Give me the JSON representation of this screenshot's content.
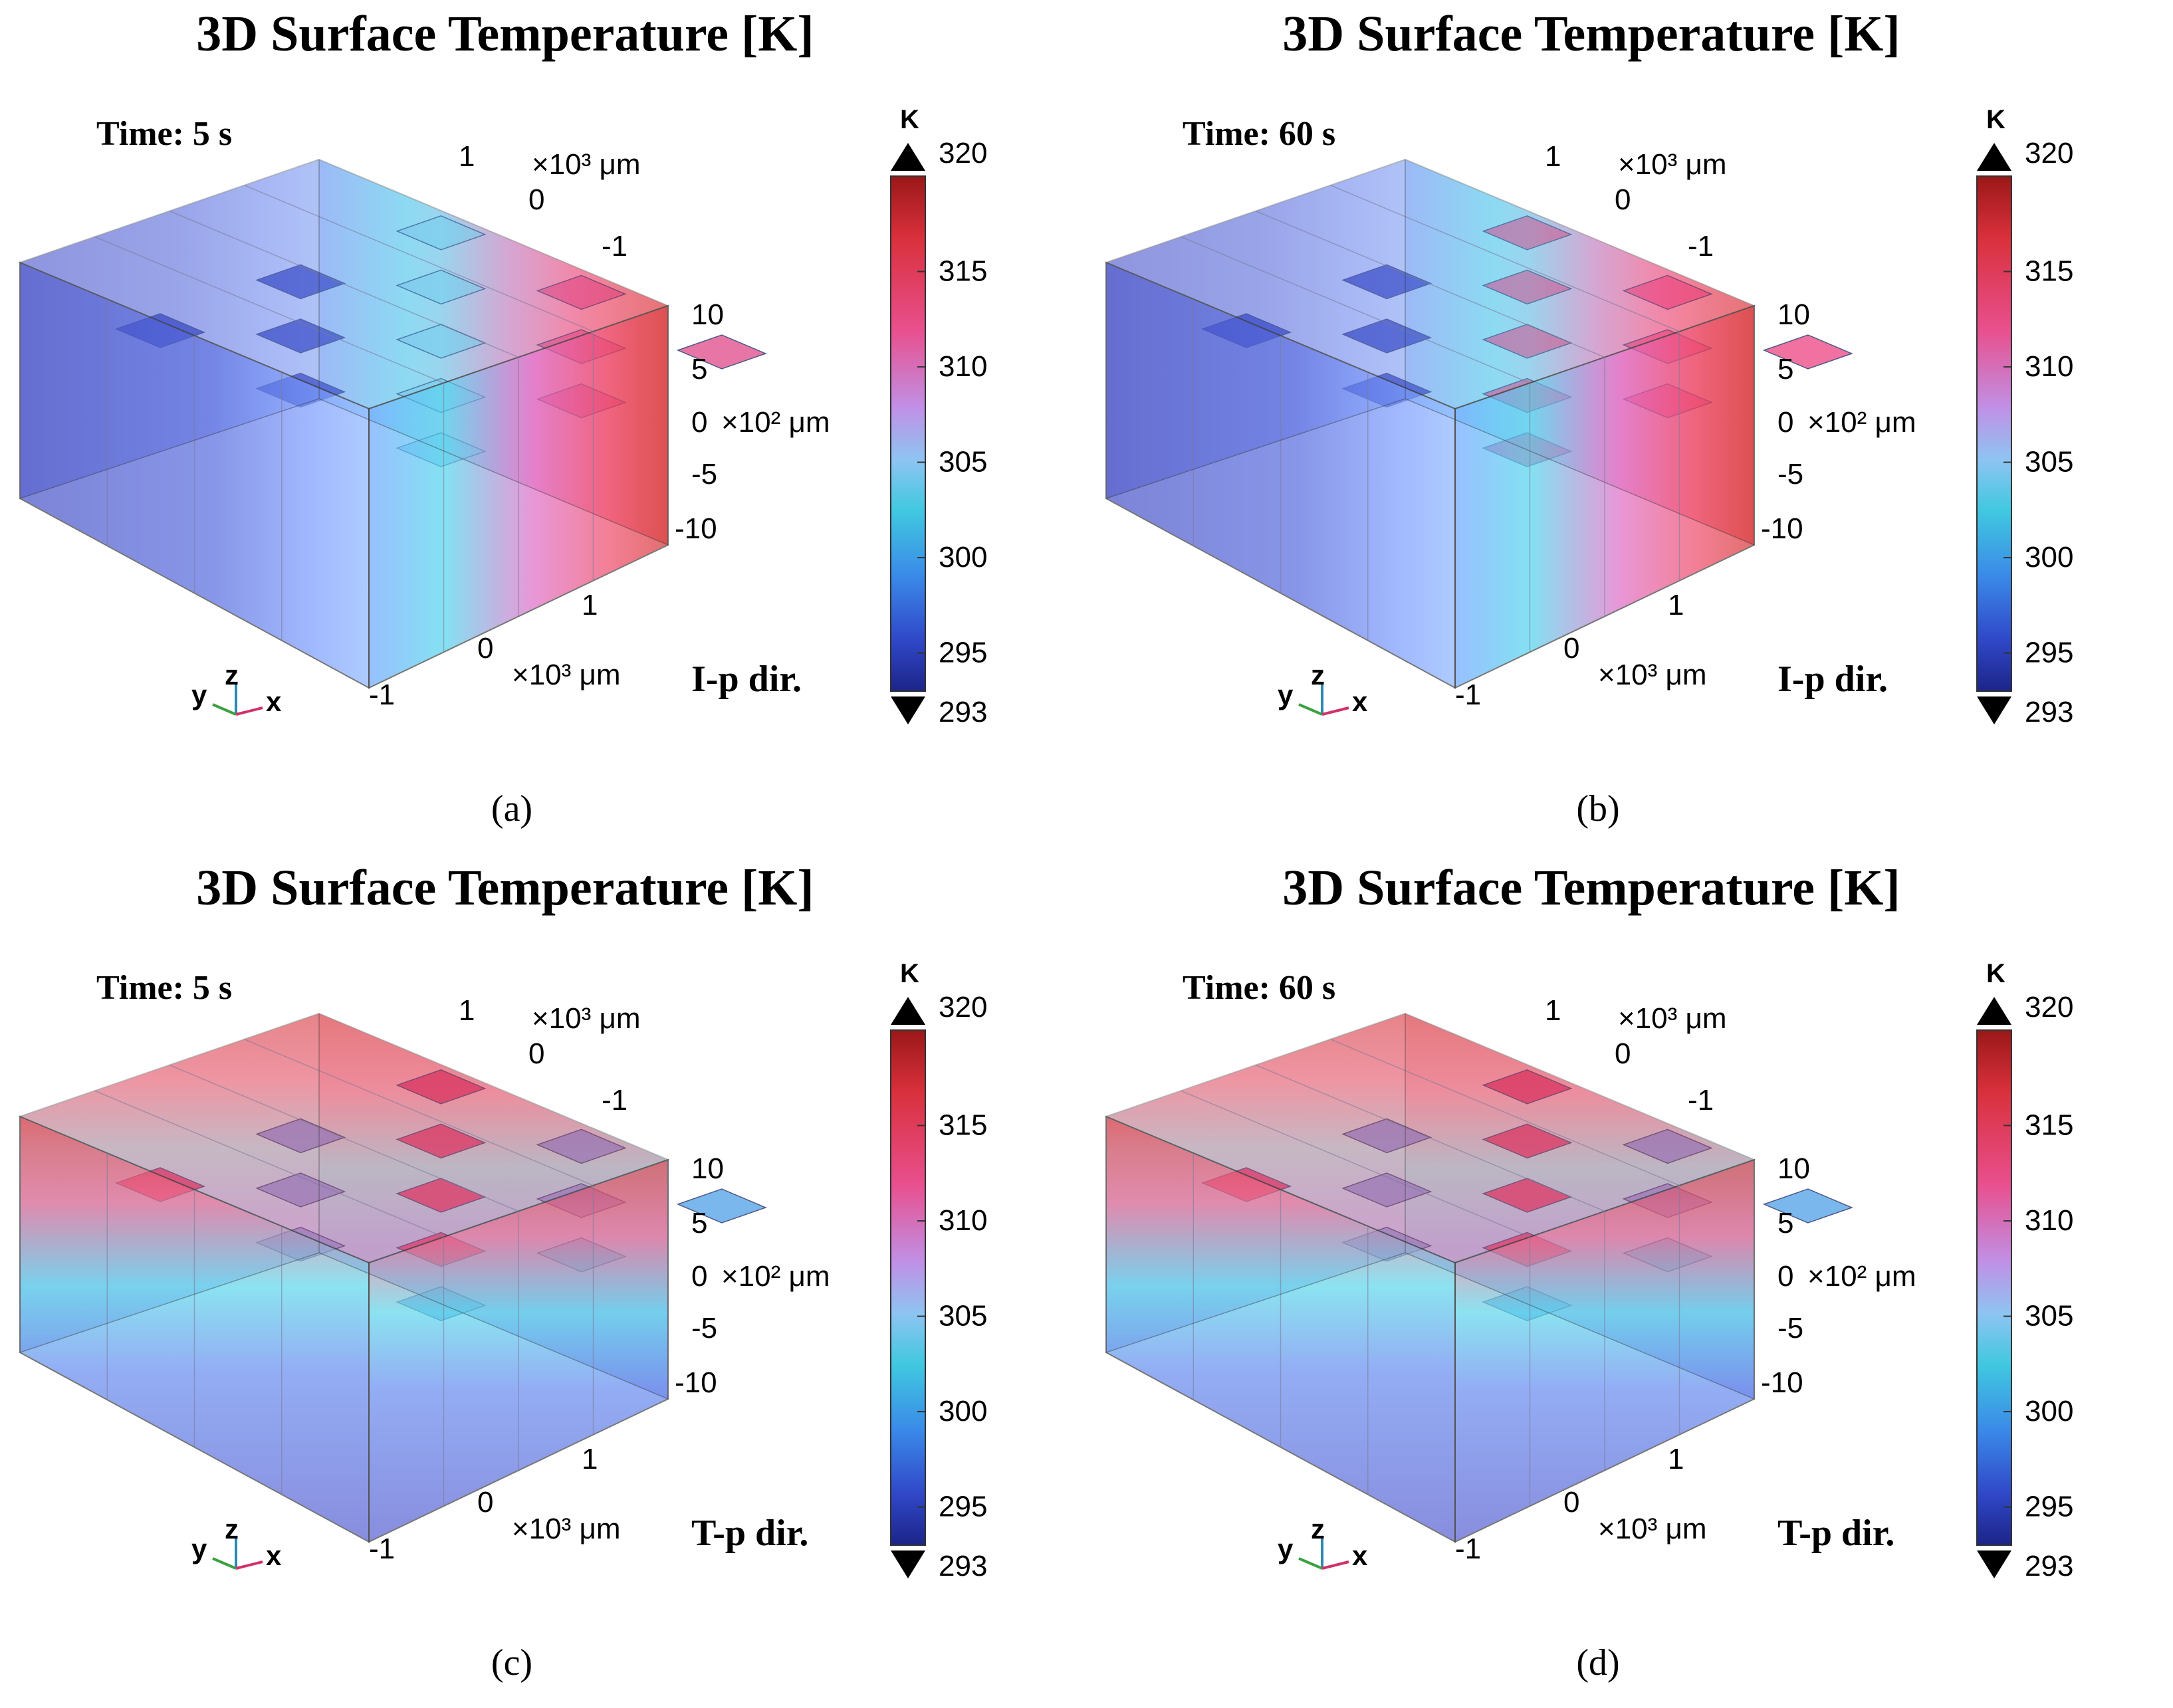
{
  "figure": {
    "colorbar": {
      "unit": "K",
      "min": 293,
      "max": 320,
      "ticks": [
        "320",
        "315",
        "310",
        "305",
        "300",
        "295",
        "293"
      ]
    },
    "axes": {
      "y_top": [
        "1",
        "0",
        "-1"
      ],
      "y_unit": "×10³ μm",
      "z": [
        "10",
        "5",
        "0",
        "-5",
        "-10"
      ],
      "z_unit": "×10² μm",
      "x_bottom": [
        "1",
        "0",
        "-1"
      ],
      "x_unit": "×10³ μm",
      "triad": [
        "y",
        "z",
        "x"
      ]
    },
    "panels": [
      {
        "id": "a",
        "title": "3D Surface Temperature [K]",
        "time": "Time: 5 s",
        "direction": "I-p dir.",
        "caption": "(a)",
        "gradient": "lateral",
        "hot": 0.9
      },
      {
        "id": "b",
        "title": "3D Surface Temperature [K]",
        "time": "Time: 60 s",
        "direction": "I-p dir.",
        "caption": "(b)",
        "gradient": "lateral",
        "hot": 1.0
      },
      {
        "id": "c",
        "title": "3D Surface Temperature [K]",
        "time": "Time: 5 s",
        "direction": "T-p dir.",
        "caption": "(c)",
        "gradient": "vertical",
        "hot": 0.9
      },
      {
        "id": "d",
        "title": "3D Surface Temperature [K]",
        "time": "Time: 60 s",
        "direction": "T-p dir.",
        "caption": "(d)",
        "gradient": "vertical",
        "hot": 1.0
      }
    ]
  }
}
